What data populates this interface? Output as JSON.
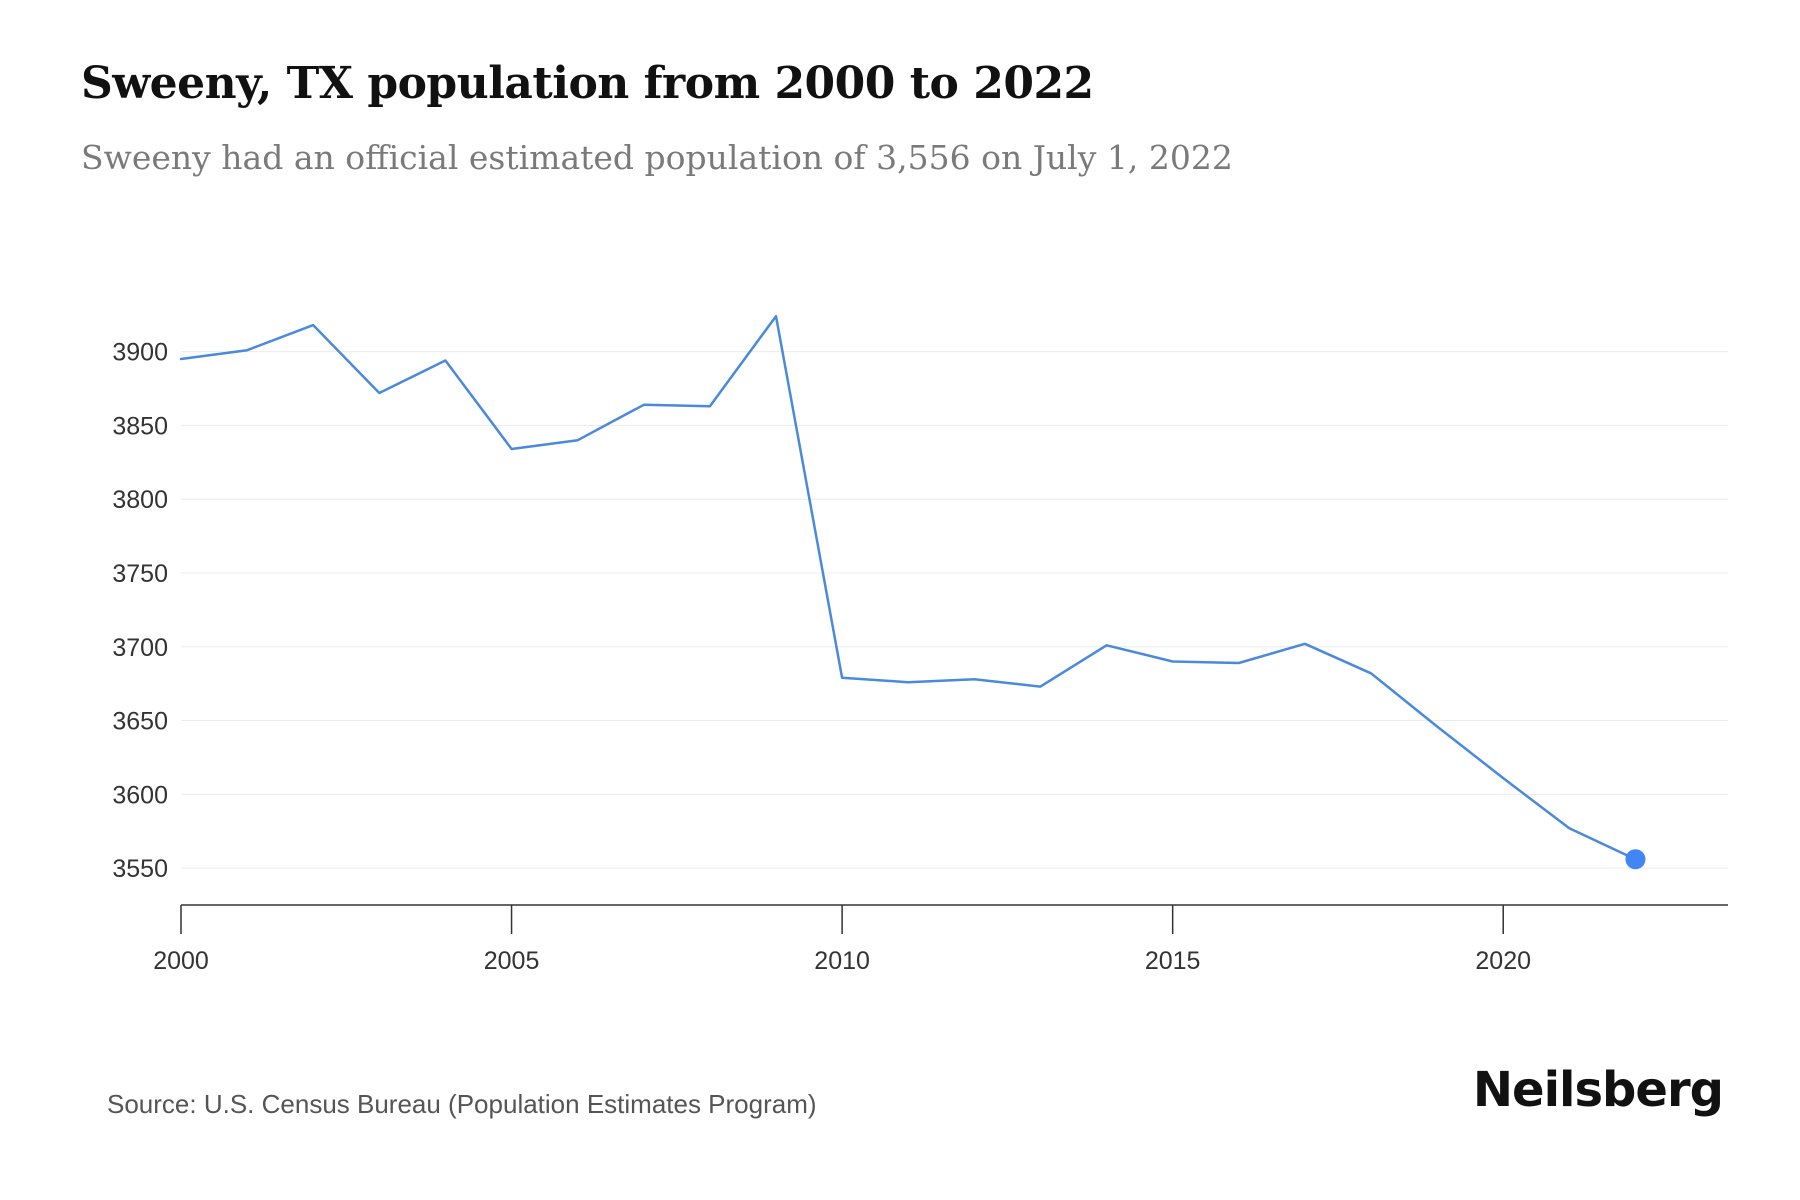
{
  "header": {
    "title": "Sweeny, TX population from 2000 to 2022",
    "subtitle": "Sweeny had an official estimated population of 3,556 on July 1, 2022"
  },
  "footer": {
    "source": "Source: U.S. Census Bureau (Population Estimates Program)",
    "brand": "Neilsberg"
  },
  "colors": {
    "line": "#4a89dc",
    "marker": "#4285f4",
    "grid": "#ececec",
    "axis": "#333333",
    "tick_label": "#333333"
  },
  "chart_data": {
    "type": "line",
    "title": "",
    "xlabel": "",
    "ylabel": "",
    "x": [
      2000,
      2001,
      2002,
      2003,
      2004,
      2005,
      2006,
      2007,
      2008,
      2009,
      2010,
      2011,
      2012,
      2013,
      2014,
      2015,
      2016,
      2017,
      2018,
      2019,
      2020,
      2021,
      2022
    ],
    "series": [
      {
        "values": [
          3895,
          3901,
          3918,
          3872,
          3894,
          3834,
          3840,
          3864,
          3863,
          3924,
          3679,
          3676,
          3678,
          3673,
          3701,
          3690,
          3689,
          3702,
          3682,
          3646,
          3611,
          3577,
          3556
        ]
      }
    ],
    "xlim": [
      2000,
      2023.4
    ],
    "ylim": [
      3525,
      3935
    ],
    "xticks": [
      2000,
      2005,
      2010,
      2015,
      2020
    ],
    "yticks": [
      3550,
      3600,
      3650,
      3700,
      3750,
      3800,
      3850,
      3900
    ],
    "grid": "horizontal",
    "last_point_marker": true
  }
}
